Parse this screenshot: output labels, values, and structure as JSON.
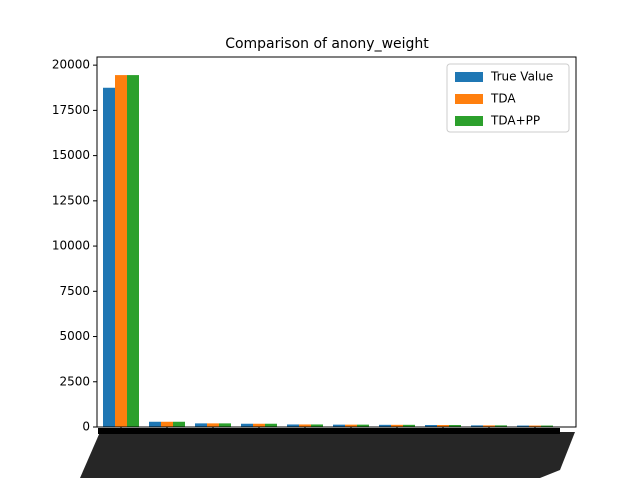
{
  "chart_data": {
    "type": "bar",
    "title": "Comparison of anony_weight",
    "categories": [
      null,
      null,
      null,
      null,
      null,
      null,
      null,
      null,
      null,
      null
    ],
    "series": [
      {
        "name": "True Value",
        "color": "#1f77b4",
        "values": [
          18750,
          290,
          200,
          180,
          140,
          130,
          120,
          110,
          90,
          80
        ]
      },
      {
        "name": "TDA",
        "color": "#ff7f0e",
        "values": [
          19450,
          290,
          200,
          180,
          140,
          130,
          120,
          110,
          90,
          80
        ]
      },
      {
        "name": "TDA+PP",
        "color": "#2ca02c",
        "values": [
          19450,
          290,
          200,
          180,
          140,
          130,
          120,
          110,
          90,
          80
        ]
      }
    ],
    "ylim": [
      0,
      20450
    ],
    "yticks": [
      0,
      2500,
      5000,
      7500,
      10000,
      12500,
      15000,
      17500,
      20000
    ],
    "legend": "upper right"
  }
}
